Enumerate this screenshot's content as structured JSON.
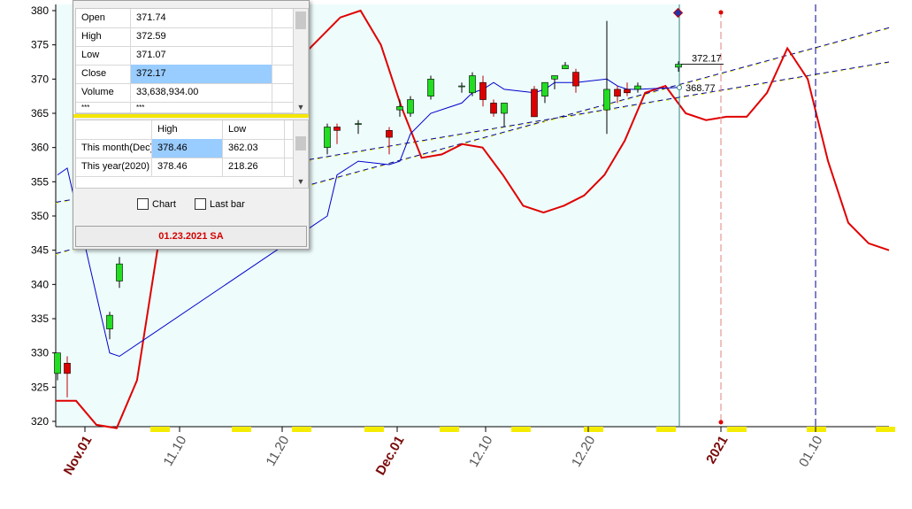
{
  "chart_data": {
    "type": "candlestick",
    "ylim": [
      320,
      380
    ],
    "yticks": [
      380,
      375,
      370,
      365,
      360,
      355,
      350,
      345,
      340,
      335,
      330,
      325,
      320
    ],
    "xticks": [
      {
        "label": "Nov.01",
        "major": true
      },
      {
        "label": "11.10",
        "major": false
      },
      {
        "label": "11.20",
        "major": false
      },
      {
        "label": "Dec.01",
        "major": true
      },
      {
        "label": "12.10",
        "major": false
      },
      {
        "label": "12.20",
        "major": false
      },
      {
        "label": "2021",
        "major": true
      },
      {
        "label": "01.10",
        "major": false
      }
    ],
    "candles": [
      {
        "open": 327.0,
        "high": 330.0,
        "low": 326.0,
        "close": 330.0
      },
      {
        "open": 328.5,
        "high": 329.5,
        "low": 323.5,
        "close": 327.0
      },
      {
        "open": 333.5,
        "high": 336.0,
        "low": 332.0,
        "close": 335.5
      },
      {
        "open": 340.5,
        "high": 344.0,
        "low": 339.5,
        "close": 343.0
      },
      {
        "open": 360.0,
        "high": 363.5,
        "low": 359.0,
        "close": 363.0
      },
      {
        "open": 363.0,
        "high": 363.5,
        "low": 360.5,
        "close": 362.5
      },
      {
        "open": 363.5,
        "high": 364.0,
        "low": 362.0,
        "close": 363.5
      },
      {
        "open": 362.5,
        "high": 363.0,
        "low": 359.0,
        "close": 361.5
      },
      {
        "open": 365.5,
        "high": 367.0,
        "low": 364.5,
        "close": 366.0
      },
      {
        "open": 365.0,
        "high": 367.5,
        "low": 364.5,
        "close": 367.0
      },
      {
        "open": 367.5,
        "high": 370.5,
        "low": 367.0,
        "close": 370.0
      },
      {
        "open": 369.0,
        "high": 369.5,
        "low": 368.0,
        "close": 369.0
      },
      {
        "open": 368.0,
        "high": 371.0,
        "low": 367.5,
        "close": 370.5
      },
      {
        "open": 369.5,
        "high": 370.5,
        "low": 366.0,
        "close": 367.0
      },
      {
        "open": 366.5,
        "high": 367.0,
        "low": 364.5,
        "close": 365.0
      },
      {
        "open": 365.0,
        "high": 366.5,
        "low": 363.0,
        "close": 366.5
      },
      {
        "open": 368.5,
        "high": 369.0,
        "low": 364.5,
        "close": 364.5
      },
      {
        "open": 367.5,
        "high": 369.5,
        "low": 366.5,
        "close": 369.5
      },
      {
        "open": 370.0,
        "high": 370.5,
        "low": 368.5,
        "close": 370.5
      },
      {
        "open": 371.5,
        "high": 372.5,
        "low": 371.5,
        "close": 372.0
      },
      {
        "open": 371.0,
        "high": 371.5,
        "low": 368.0,
        "close": 369.0
      },
      {
        "open": 365.5,
        "high": 378.5,
        "low": 362.0,
        "close": 368.5
      },
      {
        "open": 368.5,
        "high": 369.0,
        "low": 366.5,
        "close": 367.5
      },
      {
        "open": 368.5,
        "high": 369.5,
        "low": 367.5,
        "close": 368.0
      },
      {
        "open": 368.5,
        "high": 369.5,
        "low": 368.0,
        "close": 369.0
      },
      {
        "open": 371.74,
        "high": 372.59,
        "low": 371.07,
        "close": 372.17
      }
    ],
    "ma_line": [
      356.0,
      357.0,
      330.0,
      329.5,
      350.0,
      356.0,
      358.0,
      357.5,
      358.0,
      362.0,
      365.0,
      366.5,
      368.0,
      368.5,
      369.5,
      368.5,
      368.0,
      368.5,
      369.5,
      369.5,
      369.5,
      370.0,
      369.0,
      368.5,
      368.5,
      368.77
    ],
    "red_curve": [
      323,
      323,
      319.5,
      319,
      326,
      345,
      362,
      366,
      370,
      376,
      376,
      373,
      373,
      376,
      379,
      380,
      375,
      366,
      358.5,
      359,
      360.5,
      360,
      356,
      351.5,
      350.5,
      351.5,
      353,
      356,
      361,
      368,
      369,
      365,
      364,
      364.5,
      364.5,
      368,
      374.5,
      370,
      358,
      349,
      346,
      345
    ],
    "channel_top_start": 344.5,
    "channel_top_end": 377.5,
    "channel_mid_start": 352.0,
    "channel_mid_end": 372.5,
    "last_close_label": "372.17",
    "last_ma_label": "368.77"
  },
  "info_panel": {
    "rows": [
      {
        "label": "Open",
        "value": "371.74"
      },
      {
        "label": "High",
        "value": "372.59"
      },
      {
        "label": "Low",
        "value": "371.07"
      },
      {
        "label": "Close",
        "value": "372.17"
      },
      {
        "label": "Volume",
        "value": "33,638,934.00"
      },
      {
        "label": "***",
        "value": "***"
      }
    ],
    "range_header_high": "High",
    "range_header_low": "Low",
    "range_rows": [
      {
        "label": "This month(Dec)",
        "high": "378.46",
        "low": "362.03"
      },
      {
        "label": "This year(2020)",
        "high": "378.46",
        "low": "218.26"
      }
    ],
    "chart_checkbox": "Chart",
    "lastbar_checkbox": "Last bar",
    "date": "01.23.2021 SA"
  }
}
